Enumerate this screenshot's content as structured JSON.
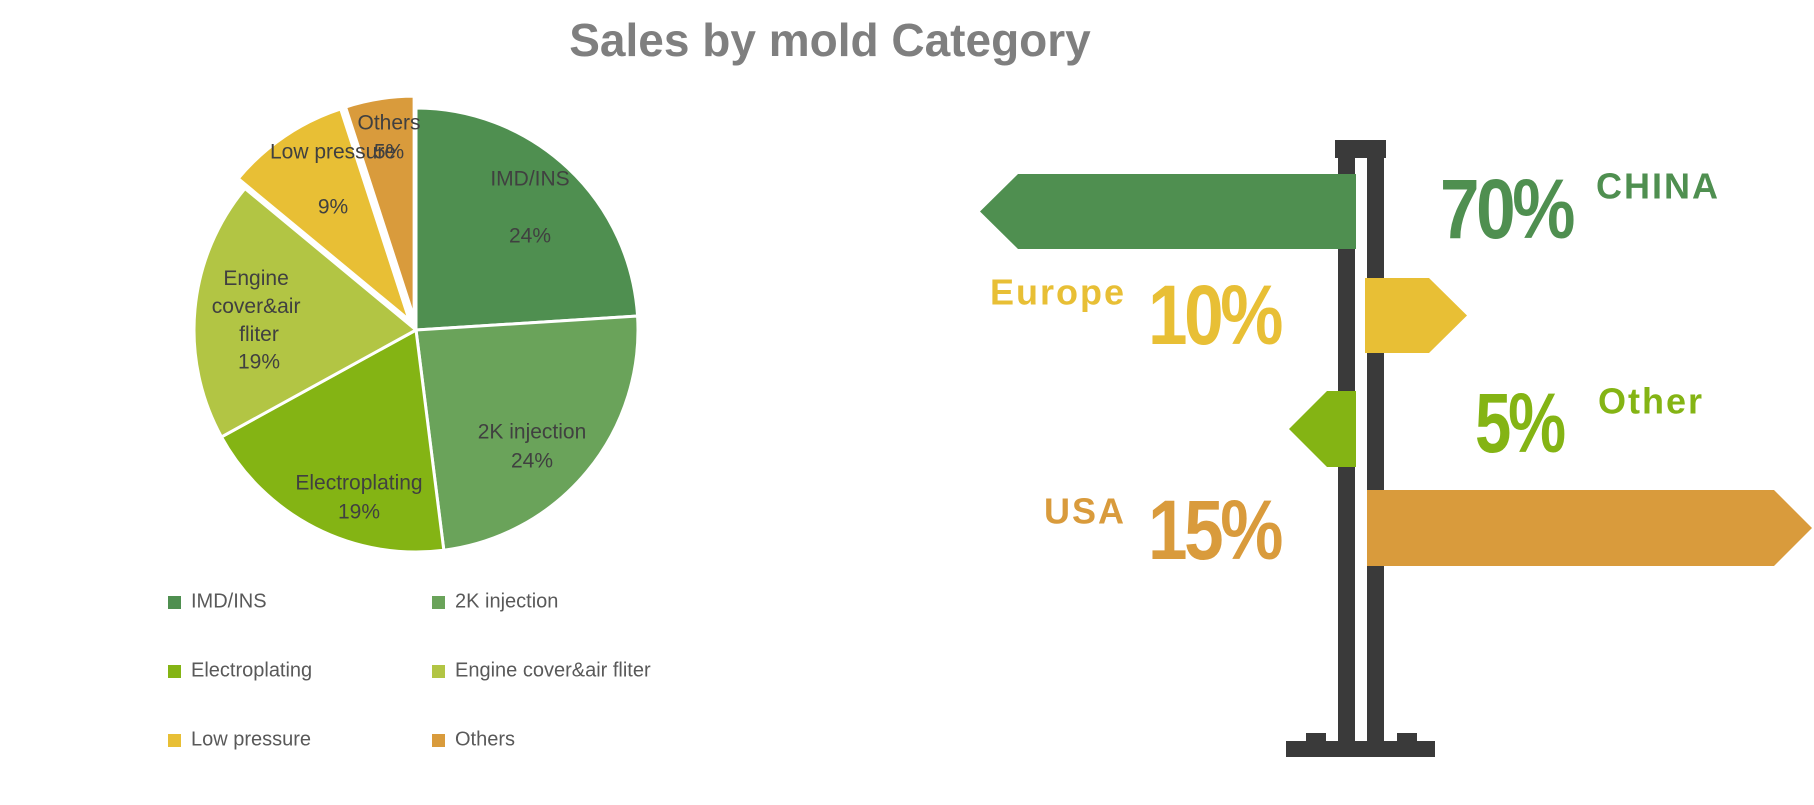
{
  "chart_data": [
    {
      "type": "pie",
      "title": "Sales by mold Category",
      "categories": [
        "IMD/INS",
        "2K injection",
        "Electroplating",
        "Engine cover&air fliter",
        "Low pressure",
        "Others"
      ],
      "values": [
        24,
        24,
        19,
        19,
        9,
        5
      ],
      "value_labels": [
        "24%",
        "24%",
        "19%",
        "19%",
        "9%",
        "5%"
      ],
      "colors": [
        "#4f8f50",
        "#6aa35a",
        "#84b414",
        "#b2c544",
        "#e8bf35",
        "#d99b3c"
      ],
      "legend": "bottom"
    },
    {
      "type": "signpost",
      "categories": [
        "CHINA",
        "Europe",
        "Other",
        "USA"
      ],
      "values": [
        70,
        10,
        5,
        15
      ],
      "value_labels": [
        "70%",
        "10%",
        "5%",
        "15%"
      ],
      "colors": [
        "#4f8f50",
        "#e8bf35",
        "#84b414",
        "#d99b3c"
      ]
    }
  ]
}
